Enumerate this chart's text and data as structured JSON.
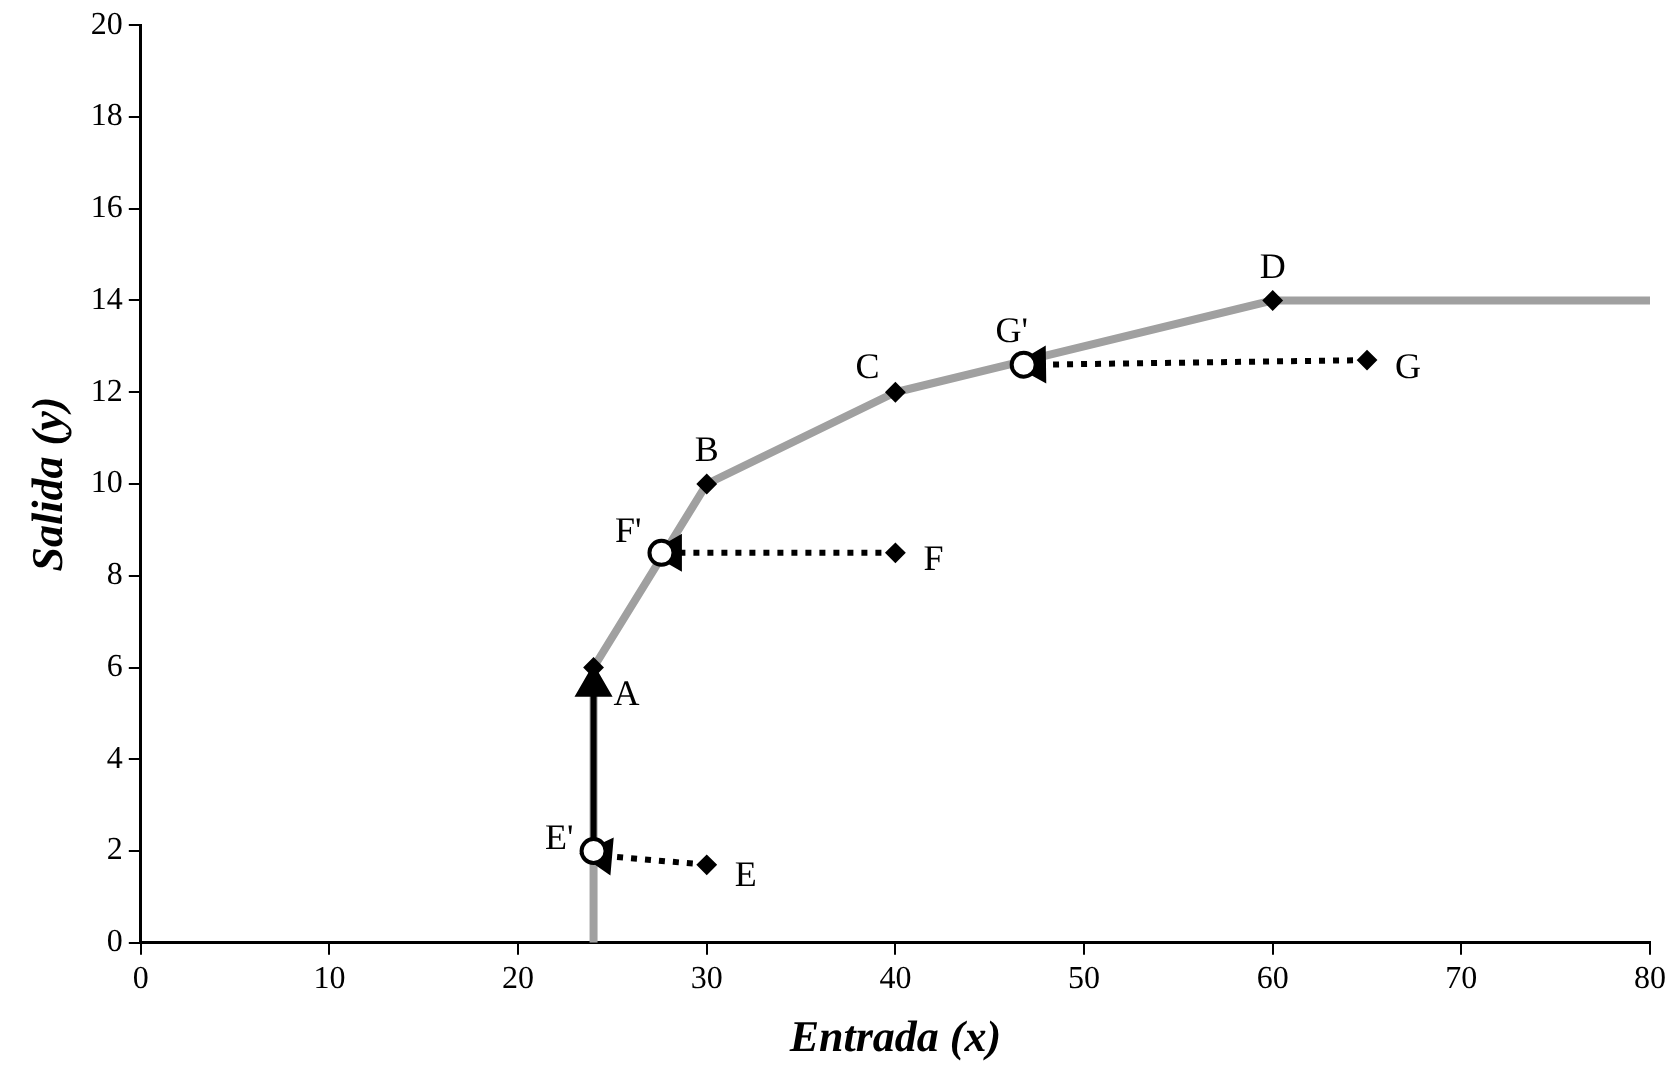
{
  "chart_data": {
    "type": "line",
    "xlabel": "Entrada (x)",
    "ylabel": "Salida (y)",
    "xlim": [
      0,
      80
    ],
    "xticks": [
      0,
      10,
      20,
      30,
      40,
      50,
      60,
      70,
      80
    ],
    "ylim": [
      0,
      20
    ],
    "yticks": [
      0,
      2,
      4,
      6,
      8,
      10,
      12,
      14,
      16,
      18,
      20
    ],
    "grid": false,
    "legend": false,
    "series": [
      {
        "color": "#a0a0a0",
        "x": [
          24,
          24,
          30,
          40,
          60,
          80
        ],
        "values": [
          0,
          6,
          10,
          12,
          14,
          14
        ],
        "marker": "none",
        "line_style": "solid"
      },
      {
        "color": "#000000",
        "x": [
          30,
          24.4
        ],
        "values": [
          1.7,
          1.9
        ],
        "marker": "triangle",
        "line_style": "dotted"
      },
      {
        "color": "#000000",
        "x": [
          24,
          24
        ],
        "values": [
          2,
          5.6
        ],
        "marker": "triangle",
        "line_style": "solid"
      },
      {
        "color": "#000000",
        "x": [
          40,
          28.1
        ],
        "values": [
          8.5,
          8.5
        ],
        "marker": "triangle",
        "line_style": "dotted"
      },
      {
        "color": "#000000",
        "x": [
          65,
          47.4
        ],
        "values": [
          12.7,
          12.6
        ],
        "marker": "triangle",
        "line_style": "dotted"
      },
      {
        "type": "scatter",
        "color": "#000000",
        "x": [
          24,
          30,
          40,
          60,
          30,
          40,
          65
        ],
        "values": [
          6,
          10,
          12,
          14,
          1.7,
          8.5,
          12.7
        ],
        "marker": "diamond"
      },
      {
        "type": "scatter",
        "color": "#000000",
        "x": [
          24,
          27.6,
          46.8
        ],
        "values": [
          2,
          8.5,
          12.6
        ],
        "marker": "circle"
      }
    ],
    "annotations": [
      {
        "text": "A",
        "x": 24,
        "y": 6
      },
      {
        "text": "B",
        "x": 30,
        "y": 10
      },
      {
        "text": "C",
        "x": 40,
        "y": 12
      },
      {
        "text": "D",
        "x": 60,
        "y": 14
      },
      {
        "text": "E",
        "x": 30,
        "y": 1.7
      },
      {
        "text": "F",
        "x": 40,
        "y": 8.5
      },
      {
        "text": "G",
        "x": 65,
        "y": 12.7
      },
      {
        "text": "E'",
        "x": 24,
        "y": 2
      },
      {
        "text": "F'",
        "x": 27.6,
        "y": 8.5
      },
      {
        "text": "G'",
        "x": 46.8,
        "y": 12.6
      }
    ]
  }
}
